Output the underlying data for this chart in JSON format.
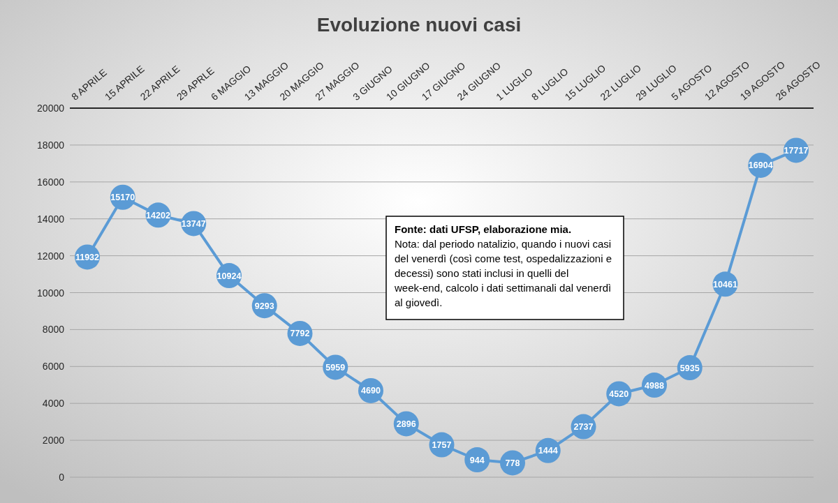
{
  "chart_data": {
    "type": "line",
    "title": "Evoluzione nuovi casi",
    "categories": [
      "8 APRILE",
      "15 APRILE",
      "22 APRILE",
      "29 APRLE",
      "6 MAGGIO",
      "13 MAGGIO",
      "20 MAGGIO",
      "27 MAGGIO",
      "3 GIUGNO",
      "10 GIUGNO",
      "17 GIUGNO",
      "24 GIUGNO",
      "1 LUGLIO",
      "8 LUGLIO",
      "15 LUGLIO",
      "22 LUGLIO",
      "29 LUGLIO",
      "5 AGOSTO",
      "12 AGOSTO",
      "19 AGOSTO",
      "26 AGOSTO"
    ],
    "series": [
      {
        "color": "#5b9bd5",
        "values": [
          11932,
          15170,
          14202,
          13747,
          10924,
          9293,
          7792,
          5959,
          4690,
          2896,
          1757,
          944,
          778,
          1444,
          2737,
          4520,
          4988,
          5935,
          10461,
          16904,
          17717
        ]
      }
    ],
    "ylim": [
      0,
      20000
    ],
    "yticks": [
      0,
      2000,
      4000,
      6000,
      8000,
      10000,
      12000,
      14000,
      16000,
      18000,
      20000
    ],
    "grid": "y",
    "marker": "circle",
    "data_labels": true,
    "annotations": [
      "Fonte: dati UFSP, elaborazione mia.",
      "Nota: dal periodo natalizio, quando i nuovi casi del venerdì (così come test, ospedalizzazioni e decessi) sono stati inclusi in quelli del week-end, calcolo i dati settimanali dal venerdì al giovedì."
    ]
  }
}
